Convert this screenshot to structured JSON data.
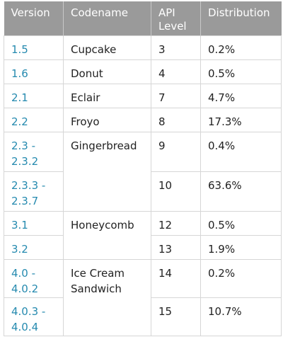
{
  "headers": {
    "version": "Version",
    "codename": "Codename",
    "api_line1": "API",
    "api_line2": "Level",
    "distribution": "Distribution"
  },
  "rows": [
    {
      "version_line1": "1.5",
      "version_line2": "",
      "codename_line1": "Cupcake",
      "codename_line2": "",
      "api": "3",
      "distribution": "0.2%"
    },
    {
      "version_line1": "1.6",
      "version_line2": "",
      "codename_line1": "Donut",
      "codename_line2": "",
      "api": "4",
      "distribution": "0.5%"
    },
    {
      "version_line1": "2.1",
      "version_line2": "",
      "codename_line1": "Eclair",
      "codename_line2": "",
      "api": "7",
      "distribution": "4.7%"
    },
    {
      "version_line1": "2.2",
      "version_line2": "",
      "codename_line1": "Froyo",
      "codename_line2": "",
      "api": "8",
      "distribution": "17.3%"
    },
    {
      "version_line1": "2.3 -",
      "version_line2": "2.3.2",
      "codename_line1": "Gingerbread",
      "codename_line2": "",
      "api": "9",
      "distribution": "0.4%"
    },
    {
      "version_line1": "2.3.3 -",
      "version_line2": "2.3.7",
      "api": "10",
      "distribution": "63.6%"
    },
    {
      "version_line1": "3.1",
      "version_line2": "",
      "codename_line1": "Honeycomb",
      "codename_line2": "",
      "api": "12",
      "distribution": "0.5%"
    },
    {
      "version_line1": "3.2",
      "version_line2": "",
      "api": "13",
      "distribution": "1.9%"
    },
    {
      "version_line1": "4.0 -",
      "version_line2": "4.0.2",
      "codename_line1": "Ice Cream",
      "codename_line2": "Sandwich",
      "api": "14",
      "distribution": "0.2%"
    },
    {
      "version_line1": "4.0.3 -",
      "version_line2": "4.0.4",
      "api": "15",
      "distribution": "10.7%"
    }
  ],
  "colors": {
    "header_bg": "#9a9a9a",
    "header_text": "#ffffff",
    "version_link": "#258aaf",
    "border": "#d6d6d6"
  }
}
